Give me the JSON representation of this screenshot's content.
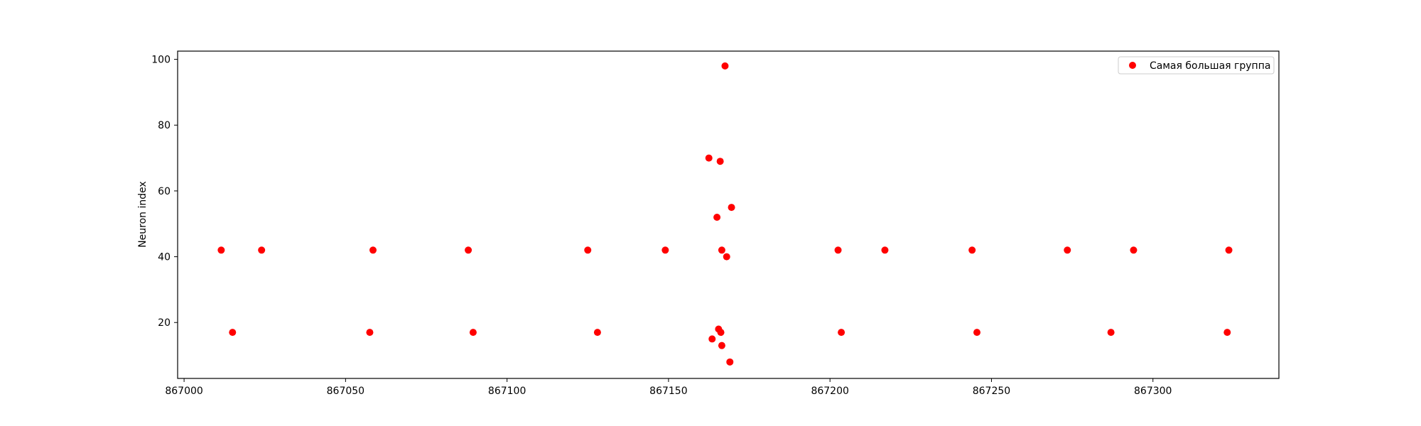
{
  "chart_data": {
    "type": "scatter",
    "title": "",
    "xlabel": "",
    "ylabel": "Neuron index",
    "xlim": [
      866998,
      867339
    ],
    "ylim": [
      3,
      102.5
    ],
    "xticks": [
      867000,
      867050,
      867100,
      867150,
      867200,
      867250,
      867300
    ],
    "yticks": [
      20,
      40,
      60,
      80,
      100
    ],
    "grid": false,
    "legend_position": "top-right",
    "series": [
      {
        "name": "Самая большая группа",
        "color": "#ff0000",
        "marker": "circle",
        "points": [
          [
            867011.5,
            42
          ],
          [
            867015,
            17
          ],
          [
            867024,
            42
          ],
          [
            867057.5,
            17
          ],
          [
            867058.5,
            42
          ],
          [
            867088,
            42
          ],
          [
            867089.5,
            17
          ],
          [
            867125,
            42
          ],
          [
            867128,
            17
          ],
          [
            867149,
            42
          ],
          [
            867162.5,
            70
          ],
          [
            867163.5,
            15
          ],
          [
            867165,
            52
          ],
          [
            867165.5,
            18
          ],
          [
            867166,
            69
          ],
          [
            867166.2,
            17
          ],
          [
            867166.5,
            42
          ],
          [
            867166.5,
            13
          ],
          [
            867167.5,
            98
          ],
          [
            867168,
            40
          ],
          [
            867169,
            8
          ],
          [
            867169.5,
            55
          ],
          [
            867202.5,
            42
          ],
          [
            867203.5,
            17
          ],
          [
            867217,
            42
          ],
          [
            867244,
            42
          ],
          [
            867245.5,
            17
          ],
          [
            867273.5,
            42
          ],
          [
            867287,
            17
          ],
          [
            867294,
            42
          ],
          [
            867323,
            17
          ],
          [
            867323.5,
            42
          ]
        ]
      }
    ]
  }
}
